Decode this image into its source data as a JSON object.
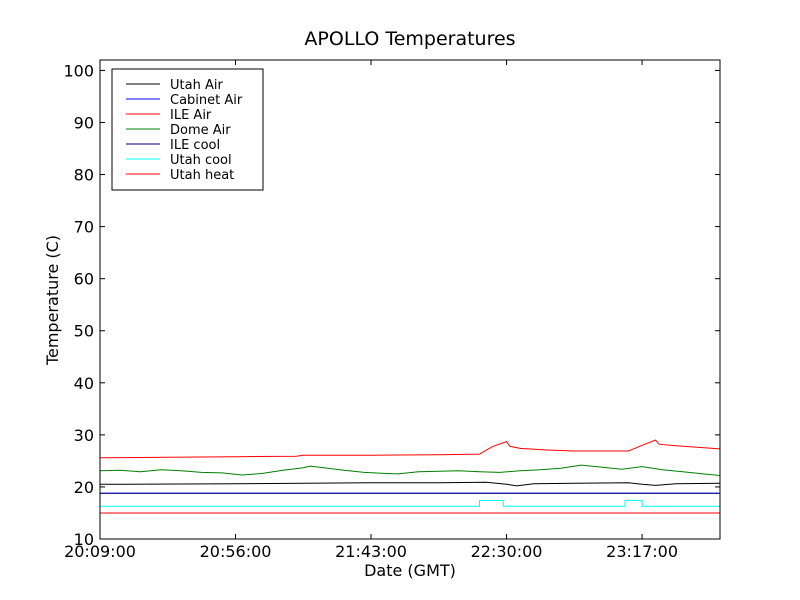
{
  "chart_data": {
    "type": "line",
    "title": "APOLLO Temperatures",
    "xlabel": "Date (GMT)",
    "ylabel": "Temperature (C)",
    "xlim": [
      0,
      9.15
    ],
    "ylim": [
      10,
      102
    ],
    "x_ticks": [
      {
        "x": 0,
        "label": "20:09:00"
      },
      {
        "x": 2,
        "label": "20:56:00"
      },
      {
        "x": 4,
        "label": "21:43:00"
      },
      {
        "x": 6,
        "label": "22:30:00"
      },
      {
        "x": 8,
        "label": "23:17:00"
      }
    ],
    "y_ticks": [
      10,
      20,
      30,
      40,
      50,
      60,
      70,
      80,
      90,
      100
    ],
    "legend_position": "top-left",
    "series": [
      {
        "name": "Utah Air",
        "color": "#000000",
        "x": [
          0,
          2,
          4,
          5,
          5.7,
          6.0,
          6.15,
          6.4,
          7,
          7.8,
          8.0,
          8.2,
          8.5,
          9.15
        ],
        "y": [
          20.5,
          20.6,
          20.8,
          20.8,
          20.9,
          20.5,
          20.2,
          20.6,
          20.7,
          20.8,
          20.5,
          20.3,
          20.6,
          20.7
        ]
      },
      {
        "name": "Cabinet Air",
        "color": "#0000ff",
        "x": [
          0,
          9.15
        ],
        "y": [
          18.8,
          18.8
        ]
      },
      {
        "name": "ILE Air",
        "color": "#ff0000",
        "x": [
          0,
          1,
          2,
          2.9,
          3.0,
          4,
          5,
          5.6,
          5.8,
          6.0,
          6.05,
          6.2,
          6.6,
          7,
          7.8,
          8.0,
          8.2,
          8.25,
          8.5,
          9.15
        ],
        "y": [
          25.6,
          25.7,
          25.8,
          25.9,
          26.1,
          26.1,
          26.2,
          26.3,
          27.8,
          28.7,
          27.8,
          27.4,
          27.1,
          26.9,
          26.9,
          28.0,
          29.0,
          28.2,
          27.9,
          27.3
        ]
      },
      {
        "name": "Dome Air",
        "color": "#008000",
        "x": [
          0,
          0.3,
          0.6,
          0.9,
          1.2,
          1.5,
          1.8,
          2.1,
          2.4,
          2.7,
          3.0,
          3.1,
          3.3,
          3.6,
          3.9,
          4.2,
          4.4,
          4.7,
          5.0,
          5.3,
          5.6,
          5.9,
          6.2,
          6.5,
          6.8,
          7.1,
          7.4,
          7.7,
          8.0,
          8.3,
          8.6,
          8.9,
          9.15
        ],
        "y": [
          23.1,
          23.2,
          22.9,
          23.3,
          23.1,
          22.8,
          22.7,
          22.3,
          22.6,
          23.2,
          23.7,
          24.0,
          23.7,
          23.2,
          22.8,
          22.6,
          22.5,
          22.9,
          23.0,
          23.1,
          22.9,
          22.8,
          23.1,
          23.3,
          23.6,
          24.2,
          23.8,
          23.4,
          23.9,
          23.3,
          22.9,
          22.5,
          22.2
        ]
      },
      {
        "name": "ILE cool",
        "color": "#000080",
        "x": [
          0,
          9.15
        ],
        "y": [
          18.8,
          18.8
        ]
      },
      {
        "name": "Utah cool",
        "color": "#00ffff",
        "x": [
          0,
          5.6,
          5.6,
          5.95,
          5.95,
          7.75,
          7.75,
          8.0,
          8.0,
          9.15
        ],
        "y": [
          16.3,
          16.3,
          17.4,
          17.4,
          16.3,
          16.3,
          17.4,
          17.4,
          16.3,
          16.3
        ]
      },
      {
        "name": "Utah heat",
        "color": "#ff0000",
        "x": [
          0,
          9.15
        ],
        "y": [
          15.0,
          15.0
        ]
      }
    ]
  }
}
